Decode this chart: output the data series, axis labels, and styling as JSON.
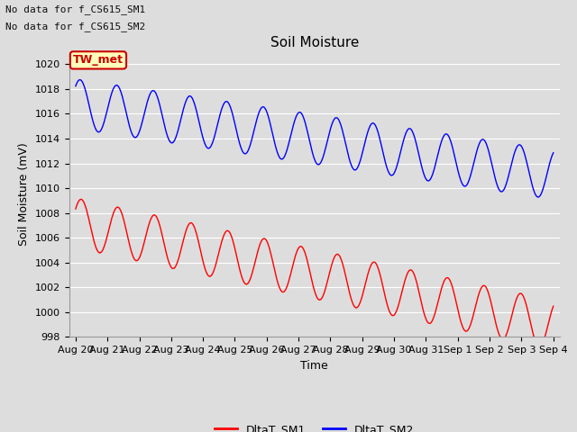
{
  "title": "Soil Moisture",
  "ylabel": "Soil Moisture (mV)",
  "xlabel": "Time",
  "ylim": [
    998,
    1021
  ],
  "yticks": [
    998,
    1000,
    1002,
    1004,
    1006,
    1008,
    1010,
    1012,
    1014,
    1016,
    1018,
    1020
  ],
  "no_data_text1": "No data for f_CS615_SM1",
  "no_data_text2": "No data for f_CS615_SM2",
  "tw_met_label": "TW_met",
  "legend_labels": [
    "DltaT_SM1",
    "DltaT_SM2"
  ],
  "sm1_color": "#ff0000",
  "sm2_color": "#0000ff",
  "background_color": "#dddddd",
  "plot_bg_color": "#dddddd",
  "grid_color": "#ffffff",
  "x_tick_labels": [
    "Aug 20",
    "Aug 21",
    "Aug 22",
    "Aug 23",
    "Aug 24",
    "Aug 25",
    "Aug 26",
    "Aug 27",
    "Aug 28",
    "Aug 29",
    "Aug 30",
    "Aug 31",
    "Sep 1",
    "Sep 2",
    "Sep 3",
    "Sep 4"
  ],
  "title_fontsize": 11,
  "axis_label_fontsize": 9,
  "tick_fontsize": 8,
  "annot_fontsize": 8,
  "legend_fontsize": 9
}
